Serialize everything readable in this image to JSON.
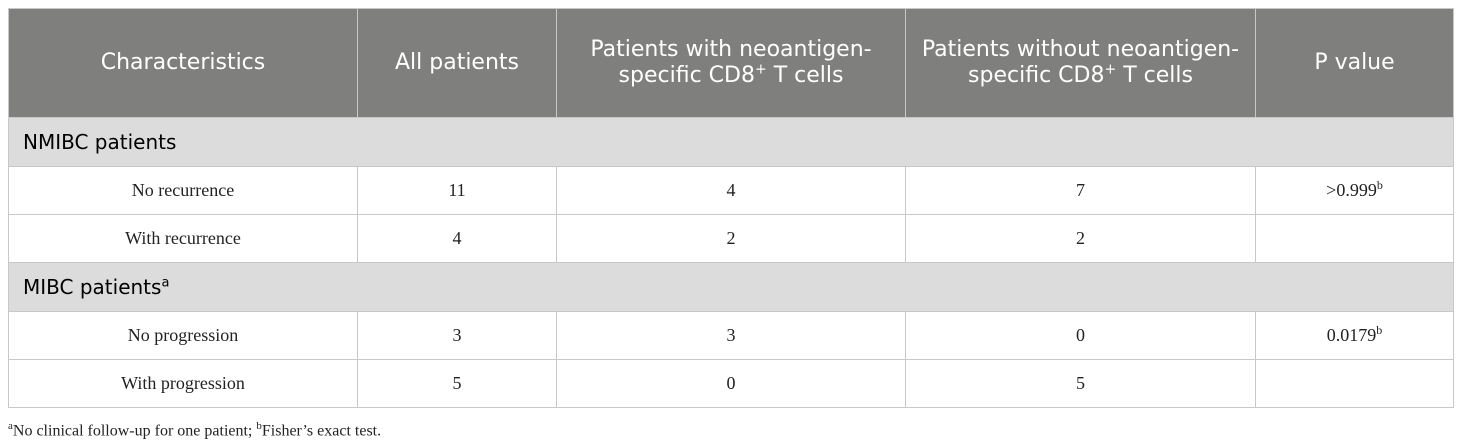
{
  "table": {
    "header": [
      {
        "text": "Characteristics"
      },
      {
        "text": "All patients"
      },
      {
        "text": "Patients with neoantigen-specific CD8",
        "sup": "+",
        "after": " T cells"
      },
      {
        "text": "Patients without neoantigen-specific CD8",
        "sup": "+",
        "after": " T cells"
      },
      {
        "text": "P value"
      }
    ],
    "groups": [
      {
        "label": "NMIBC patients",
        "rows": [
          {
            "cells": [
              "No recurrence",
              11,
              4,
              7
            ],
            "p": {
              "text": ">0.999",
              "sup": "b"
            }
          },
          {
            "cells": [
              "With recurrence",
              4,
              2,
              2
            ]
          }
        ]
      },
      {
        "label": "MIBC patients",
        "label_sup": "a",
        "rows": [
          {
            "cells": [
              "No progression",
              3,
              3,
              0
            ],
            "p": {
              "text": "0.0179",
              "sup": "b"
            }
          },
          {
            "cells": [
              "With progression",
              5,
              0,
              5
            ]
          }
        ]
      }
    ]
  },
  "footnote": [
    {
      "sup": "a",
      "text": "No clinical follow-up for one patient; "
    },
    {
      "sup": "b",
      "text": "Fisher’s exact test."
    }
  ]
}
